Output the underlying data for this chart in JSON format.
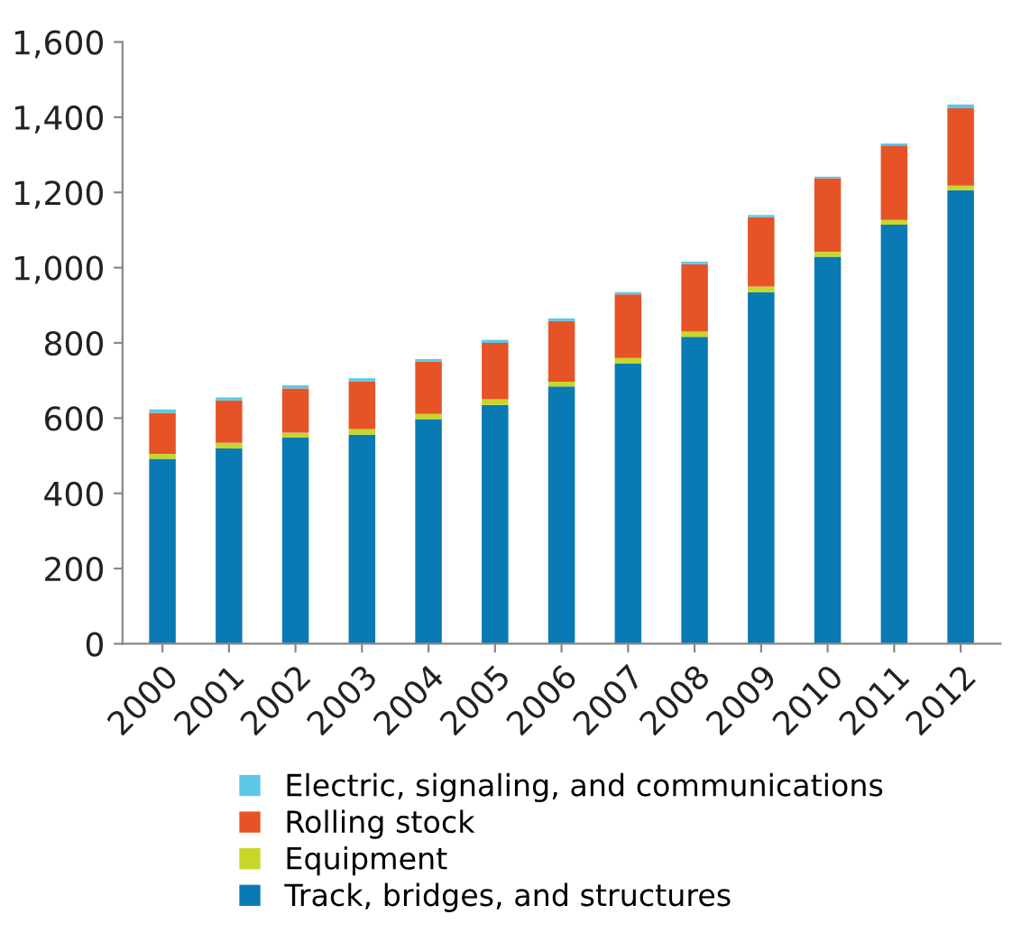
{
  "chart_data": {
    "type": "bar",
    "stacked": true,
    "categories": [
      "2000",
      "2001",
      "2002",
      "2003",
      "2004",
      "2005",
      "2006",
      "2007",
      "2008",
      "2009",
      "2010",
      "2011",
      "2012"
    ],
    "series": [
      {
        "name": "Track, bridges, and structures",
        "color": "#0a7ab5",
        "values": [
          492,
          519,
          548,
          556,
          597,
          635,
          684,
          745,
          816,
          935,
          1029,
          1114,
          1206
        ]
      },
      {
        "name": "Equipment",
        "color": "#c8d62a",
        "values": [
          13,
          15,
          13,
          15,
          14,
          15,
          13,
          15,
          14,
          15,
          13,
          13,
          12
        ]
      },
      {
        "name": "Rolling stock",
        "color": "#e65327",
        "values": [
          109,
          113,
          118,
          127,
          139,
          150,
          161,
          169,
          179,
          184,
          196,
          198,
          206
        ]
      },
      {
        "name": "Electric, signaling, and communications",
        "color": "#5bc8e8",
        "values": [
          9,
          8,
          8,
          8,
          7,
          8,
          7,
          6,
          7,
          6,
          4,
          5,
          10
        ]
      }
    ],
    "ylim": [
      0,
      1600
    ],
    "yticks": [
      0,
      200,
      400,
      600,
      {
        "value": 800,
        "label": "800"
      },
      {
        "value": 1000,
        "label": "1,000"
      },
      {
        "value": 1200,
        "label": "1,200"
      },
      {
        "value": 1400,
        "label": "1,400"
      },
      {
        "value": 1600,
        "label": "1,600"
      }
    ],
    "grid": false,
    "legend": "bottom"
  }
}
